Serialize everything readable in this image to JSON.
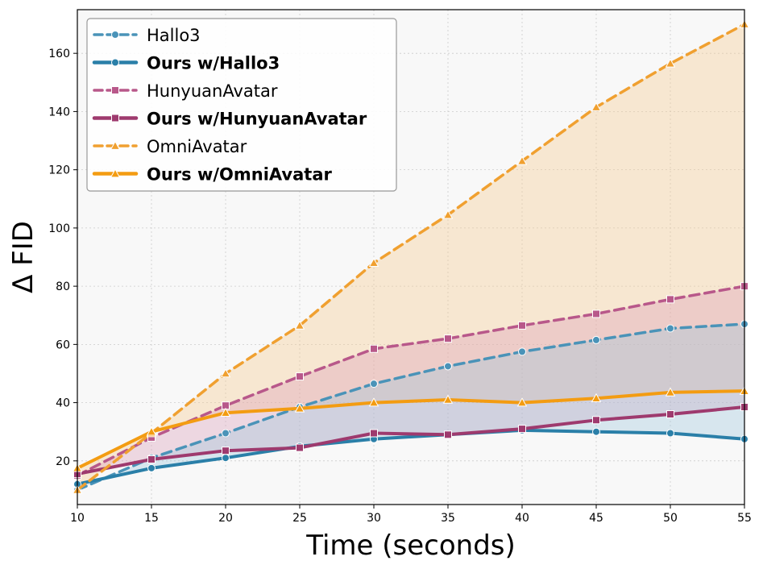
{
  "chart_data": {
    "type": "line",
    "title": "",
    "xlabel": "Time (seconds)",
    "ylabel": "Δ FID",
    "xlim": [
      10,
      55
    ],
    "ylim": [
      5,
      175
    ],
    "xticks": [
      10,
      15,
      20,
      25,
      30,
      35,
      40,
      45,
      50,
      55
    ],
    "yticks": [
      20,
      40,
      60,
      80,
      100,
      120,
      140,
      160
    ],
    "grid": true,
    "legend_position": "top-left",
    "x": [
      10,
      15,
      20,
      25,
      30,
      35,
      40,
      45,
      50,
      55
    ],
    "series": [
      {
        "name": "Hallo3",
        "color": "#4a93b8",
        "style": "dashed",
        "marker": "circle",
        "bold": false,
        "values": [
          10,
          21,
          29.5,
          38.5,
          46.5,
          52.5,
          57.5,
          61.5,
          65.5,
          67
        ]
      },
      {
        "name": "Ours w/Hallo3",
        "color": "#2a7fa8",
        "style": "solid",
        "marker": "circle",
        "bold": true,
        "values": [
          12,
          17.5,
          21,
          25,
          27.5,
          29,
          30.5,
          30,
          29.5,
          27.5
        ]
      },
      {
        "name": "HunyuanAvatar",
        "color": "#b8588a",
        "style": "dashed",
        "marker": "square",
        "bold": false,
        "values": [
          15,
          28,
          39,
          49,
          58.5,
          62,
          66.5,
          70.5,
          75.5,
          80
        ]
      },
      {
        "name": "Ours w/HunyuanAvatar",
        "color": "#9e3a6e",
        "style": "solid",
        "marker": "square",
        "bold": true,
        "values": [
          15.5,
          20.5,
          23.5,
          24.5,
          29.5,
          29,
          31,
          34,
          36,
          38.5
        ]
      },
      {
        "name": "OmniAvatar",
        "color": "#f0a030",
        "style": "dashed",
        "marker": "triangle",
        "bold": false,
        "values": [
          10,
          29.5,
          50,
          66.5,
          88,
          104.5,
          123,
          141.5,
          156.5,
          170
        ]
      },
      {
        "name": "Ours w/OmniAvatar",
        "color": "#f39c12",
        "style": "solid",
        "marker": "triangle",
        "bold": true,
        "values": [
          17.5,
          30,
          36.5,
          38,
          40,
          41,
          40,
          41.5,
          43.5,
          44
        ]
      }
    ],
    "fills": [
      {
        "between": [
          "OmniAvatar",
          "Ours w/OmniAvatar"
        ],
        "color": "#f5c98a"
      },
      {
        "between": [
          "HunyuanAvatar",
          "Ours w/HunyuanAvatar"
        ],
        "color": "#d99ab8"
      },
      {
        "between": [
          "Hallo3",
          "Ours w/Hallo3"
        ],
        "color": "#9cc5dc"
      }
    ]
  }
}
